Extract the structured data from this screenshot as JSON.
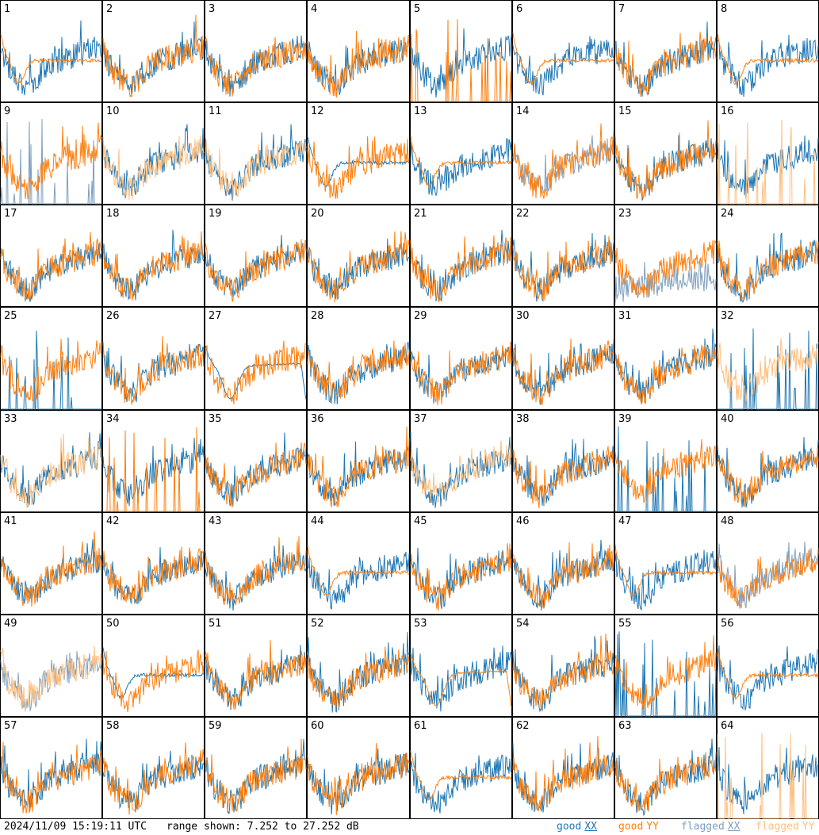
{
  "footer": {
    "timestamp": "2024/11/09 15:19:11 UTC",
    "range_text": "range shown: 7.252 to 27.252 dB"
  },
  "legend": [
    {
      "status": "good",
      "pol": "XX",
      "color": "#1f77b4"
    },
    {
      "status": "good",
      "pol": "YY",
      "color": "#ff7f0e"
    },
    {
      "status": "flagged",
      "pol": "XX",
      "color": "#7f9fbf"
    },
    {
      "status": "flagged",
      "pol": "YY",
      "color": "#ffbf7f"
    }
  ],
  "colors": {
    "good_xx": "#1f77b4",
    "good_yy": "#ff7f0e",
    "flagged_xx": "#7f9fbf",
    "flagged_yy": "#ffbf7f",
    "border": "#000000"
  },
  "chart_data": {
    "type": "line",
    "layout": "small-multiples grid, 8 columns x 8 rows",
    "y_unit": "dB",
    "ylim": [
      7.252,
      27.252
    ],
    "grid": false,
    "legend_placement": "bottom-right",
    "panels": [
      {
        "id": "1",
        "xx": "good",
        "yy": "good",
        "shape": "noisy_dip_flat"
      },
      {
        "id": "2",
        "xx": "good",
        "yy": "good",
        "shape": "noisy"
      },
      {
        "id": "3",
        "xx": "good",
        "yy": "good",
        "shape": "noisy"
      },
      {
        "id": "4",
        "xx": "good",
        "yy": "good",
        "shape": "noisy"
      },
      {
        "id": "5",
        "xx": "good",
        "yy": "good",
        "shape": "xx_noisy_yy_spikes"
      },
      {
        "id": "6",
        "xx": "good",
        "yy": "good",
        "shape": "noisy_dip_flat"
      },
      {
        "id": "7",
        "xx": "good",
        "yy": "good",
        "shape": "noisy"
      },
      {
        "id": "8",
        "xx": "good",
        "yy": "good",
        "shape": "yy_smooth"
      },
      {
        "id": "9",
        "xx": "flagged",
        "yy": "good",
        "shape": "xx_spikes_yy_noisy"
      },
      {
        "id": "10",
        "xx": "good",
        "yy": "flagged",
        "shape": "noisy"
      },
      {
        "id": "11",
        "xx": "good",
        "yy": "flagged",
        "shape": "noisy"
      },
      {
        "id": "12",
        "xx": "good",
        "yy": "good",
        "shape": "noisy_dip"
      },
      {
        "id": "13",
        "xx": "good",
        "yy": "good",
        "shape": "noisy_dip_flat"
      },
      {
        "id": "14",
        "xx": "flagged",
        "yy": "good",
        "shape": "noisy"
      },
      {
        "id": "15",
        "xx": "good",
        "yy": "good",
        "shape": "noisy"
      },
      {
        "id": "16",
        "xx": "good",
        "yy": "flagged",
        "shape": "xx_noisy_yy_spikes"
      },
      {
        "id": "17",
        "xx": "good",
        "yy": "good",
        "shape": "noisy"
      },
      {
        "id": "18",
        "xx": "good",
        "yy": "good",
        "shape": "noisy"
      },
      {
        "id": "19",
        "xx": "good",
        "yy": "good",
        "shape": "noisy"
      },
      {
        "id": "20",
        "xx": "good",
        "yy": "good",
        "shape": "noisy"
      },
      {
        "id": "21",
        "xx": "good",
        "yy": "good",
        "shape": "noisy"
      },
      {
        "id": "22",
        "xx": "good",
        "yy": "good",
        "shape": "noisy"
      },
      {
        "id": "23",
        "xx": "flagged",
        "yy": "good",
        "shape": "xx_low_noisy"
      },
      {
        "id": "24",
        "xx": "good",
        "yy": "good",
        "shape": "noisy"
      },
      {
        "id": "25",
        "xx": "good",
        "yy": "good",
        "shape": "xx_spikes_yy_noisy"
      },
      {
        "id": "26",
        "xx": "good",
        "yy": "good",
        "shape": "noisy"
      },
      {
        "id": "27",
        "xx": "good",
        "yy": "good",
        "shape": "xx_smooth_dip"
      },
      {
        "id": "28",
        "xx": "good",
        "yy": "good",
        "shape": "noisy"
      },
      {
        "id": "29",
        "xx": "good",
        "yy": "good",
        "shape": "noisy"
      },
      {
        "id": "30",
        "xx": "good",
        "yy": "good",
        "shape": "noisy"
      },
      {
        "id": "31",
        "xx": "good",
        "yy": "good",
        "shape": "noisy"
      },
      {
        "id": "32",
        "xx": "good",
        "yy": "flagged",
        "shape": "xx_spikes_yy_noisy"
      },
      {
        "id": "33",
        "xx": "good",
        "yy": "flagged",
        "shape": "noisy"
      },
      {
        "id": "34",
        "xx": "good",
        "yy": "good",
        "shape": "xx_noisy_yy_spikes"
      },
      {
        "id": "35",
        "xx": "good",
        "yy": "good",
        "shape": "noisy"
      },
      {
        "id": "36",
        "xx": "good",
        "yy": "good",
        "shape": "noisy"
      },
      {
        "id": "37",
        "xx": "good",
        "yy": "flagged",
        "shape": "noisy"
      },
      {
        "id": "38",
        "xx": "good",
        "yy": "good",
        "shape": "noisy"
      },
      {
        "id": "39",
        "xx": "good",
        "yy": "good",
        "shape": "xx_spikes_yy_noisy"
      },
      {
        "id": "40",
        "xx": "good",
        "yy": "good",
        "shape": "noisy"
      },
      {
        "id": "41",
        "xx": "good",
        "yy": "good",
        "shape": "noisy"
      },
      {
        "id": "42",
        "xx": "good",
        "yy": "good",
        "shape": "noisy"
      },
      {
        "id": "43",
        "xx": "good",
        "yy": "good",
        "shape": "noisy"
      },
      {
        "id": "44",
        "xx": "good",
        "yy": "good",
        "shape": "noisy_dip_flat"
      },
      {
        "id": "45",
        "xx": "good",
        "yy": "good",
        "shape": "noisy"
      },
      {
        "id": "46",
        "xx": "good",
        "yy": "good",
        "shape": "noisy"
      },
      {
        "id": "47",
        "xx": "good",
        "yy": "good",
        "shape": "noisy_dip_flat"
      },
      {
        "id": "48",
        "xx": "flagged",
        "yy": "good",
        "shape": "noisy"
      },
      {
        "id": "49",
        "xx": "flagged",
        "yy": "flagged",
        "shape": "noisy"
      },
      {
        "id": "50",
        "xx": "good",
        "yy": "good",
        "shape": "noisy_dip"
      },
      {
        "id": "51",
        "xx": "good",
        "yy": "good",
        "shape": "noisy"
      },
      {
        "id": "52",
        "xx": "good",
        "yy": "good",
        "shape": "noisy"
      },
      {
        "id": "53",
        "xx": "good",
        "yy": "good",
        "shape": "yy_smooth_dip"
      },
      {
        "id": "54",
        "xx": "good",
        "yy": "good",
        "shape": "noisy"
      },
      {
        "id": "55",
        "xx": "good",
        "yy": "good",
        "shape": "xx_spikes_yy_noisy"
      },
      {
        "id": "56",
        "xx": "good",
        "yy": "good",
        "shape": "noisy_dip_flat"
      },
      {
        "id": "57",
        "xx": "good",
        "yy": "good",
        "shape": "noisy"
      },
      {
        "id": "58",
        "xx": "good",
        "yy": "good",
        "shape": "noisy"
      },
      {
        "id": "59",
        "xx": "good",
        "yy": "good",
        "shape": "noisy"
      },
      {
        "id": "60",
        "xx": "good",
        "yy": "good",
        "shape": "noisy"
      },
      {
        "id": "61",
        "xx": "good",
        "yy": "good",
        "shape": "noisy_dip_flat"
      },
      {
        "id": "62",
        "xx": "good",
        "yy": "good",
        "shape": "noisy"
      },
      {
        "id": "63",
        "xx": "good",
        "yy": "good",
        "shape": "noisy"
      },
      {
        "id": "64",
        "xx": "good",
        "yy": "flagged",
        "shape": "xx_noisy_yy_spikes"
      }
    ]
  }
}
